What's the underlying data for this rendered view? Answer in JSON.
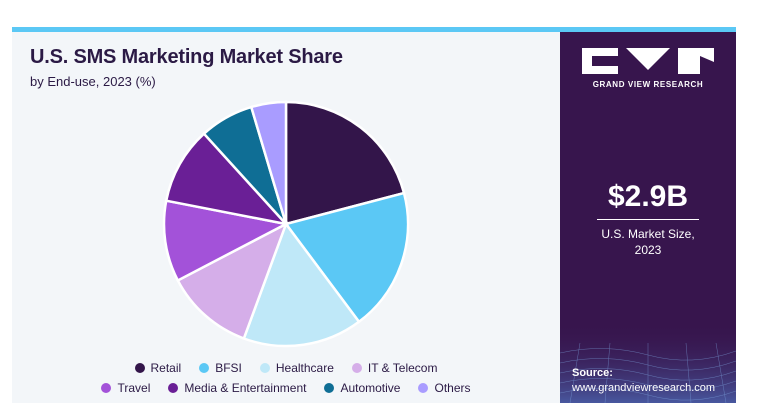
{
  "header": {
    "title": "U.S. SMS Marketing Market Share",
    "subtitle": "by End-use, 2023 (%)"
  },
  "chart_data": {
    "type": "pie",
    "title": "U.S. SMS Marketing Market Share",
    "subtitle": "by End-use, 2023 (%)",
    "categories": [
      "Retail",
      "BFSI",
      "Healthcare",
      "IT & Telecom",
      "Travel",
      "Media & Entertainment",
      "Automotive",
      "Others"
    ],
    "values": [
      20.5,
      18.5,
      15.5,
      11.5,
      10.5,
      10.0,
      7.0,
      4.5
    ],
    "colors": [
      "#33154a",
      "#5bc8f5",
      "#bfe8f8",
      "#d5aee9",
      "#a352d9",
      "#6a1f96",
      "#0f6e95",
      "#a99cff"
    ],
    "legend_position": "bottom"
  },
  "sidebar": {
    "brand": "GRAND VIEW RESEARCH",
    "market_value": "$2.9B",
    "market_label_line1": "U.S. Market Size,",
    "market_label_line2": "2023",
    "source_title": "Source:",
    "source_url": "www.grandviewresearch.com"
  }
}
